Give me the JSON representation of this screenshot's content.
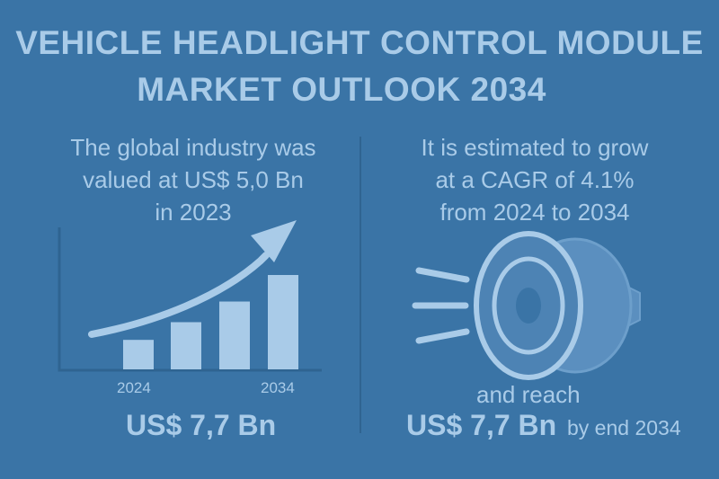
{
  "title": {
    "line1": "VEHICLE HEADLIGHT CONTROL MODULE",
    "line2": "MARKET OUTLOOK 2034"
  },
  "left": {
    "line1": "The global industry was",
    "line2": "valued at US$ 5,0 Bn",
    "line3": "in 2023",
    "year_start": "2024",
    "year_end": "2034",
    "value": "US$ 7,7 Bn"
  },
  "right": {
    "line1": "It is estimated to grow",
    "line2": "at a CAGR of 4.1%",
    "line3": "from 2024 to 2034",
    "reach": "and reach",
    "value": "US$ 7,7 Bn",
    "value_suffix": "by end 2034"
  },
  "colors": {
    "background": "#3a74a6",
    "foreground": "#a9cbe8",
    "divider": "#2f6491"
  },
  "icons": [
    "bar-chart-icon",
    "growth-arrow-icon",
    "headlight-icon"
  ],
  "chart_data": {
    "type": "bar",
    "values": [
      1,
      1.6,
      2.3,
      3.2
    ],
    "xlabel": "",
    "ylabel": ""
  }
}
